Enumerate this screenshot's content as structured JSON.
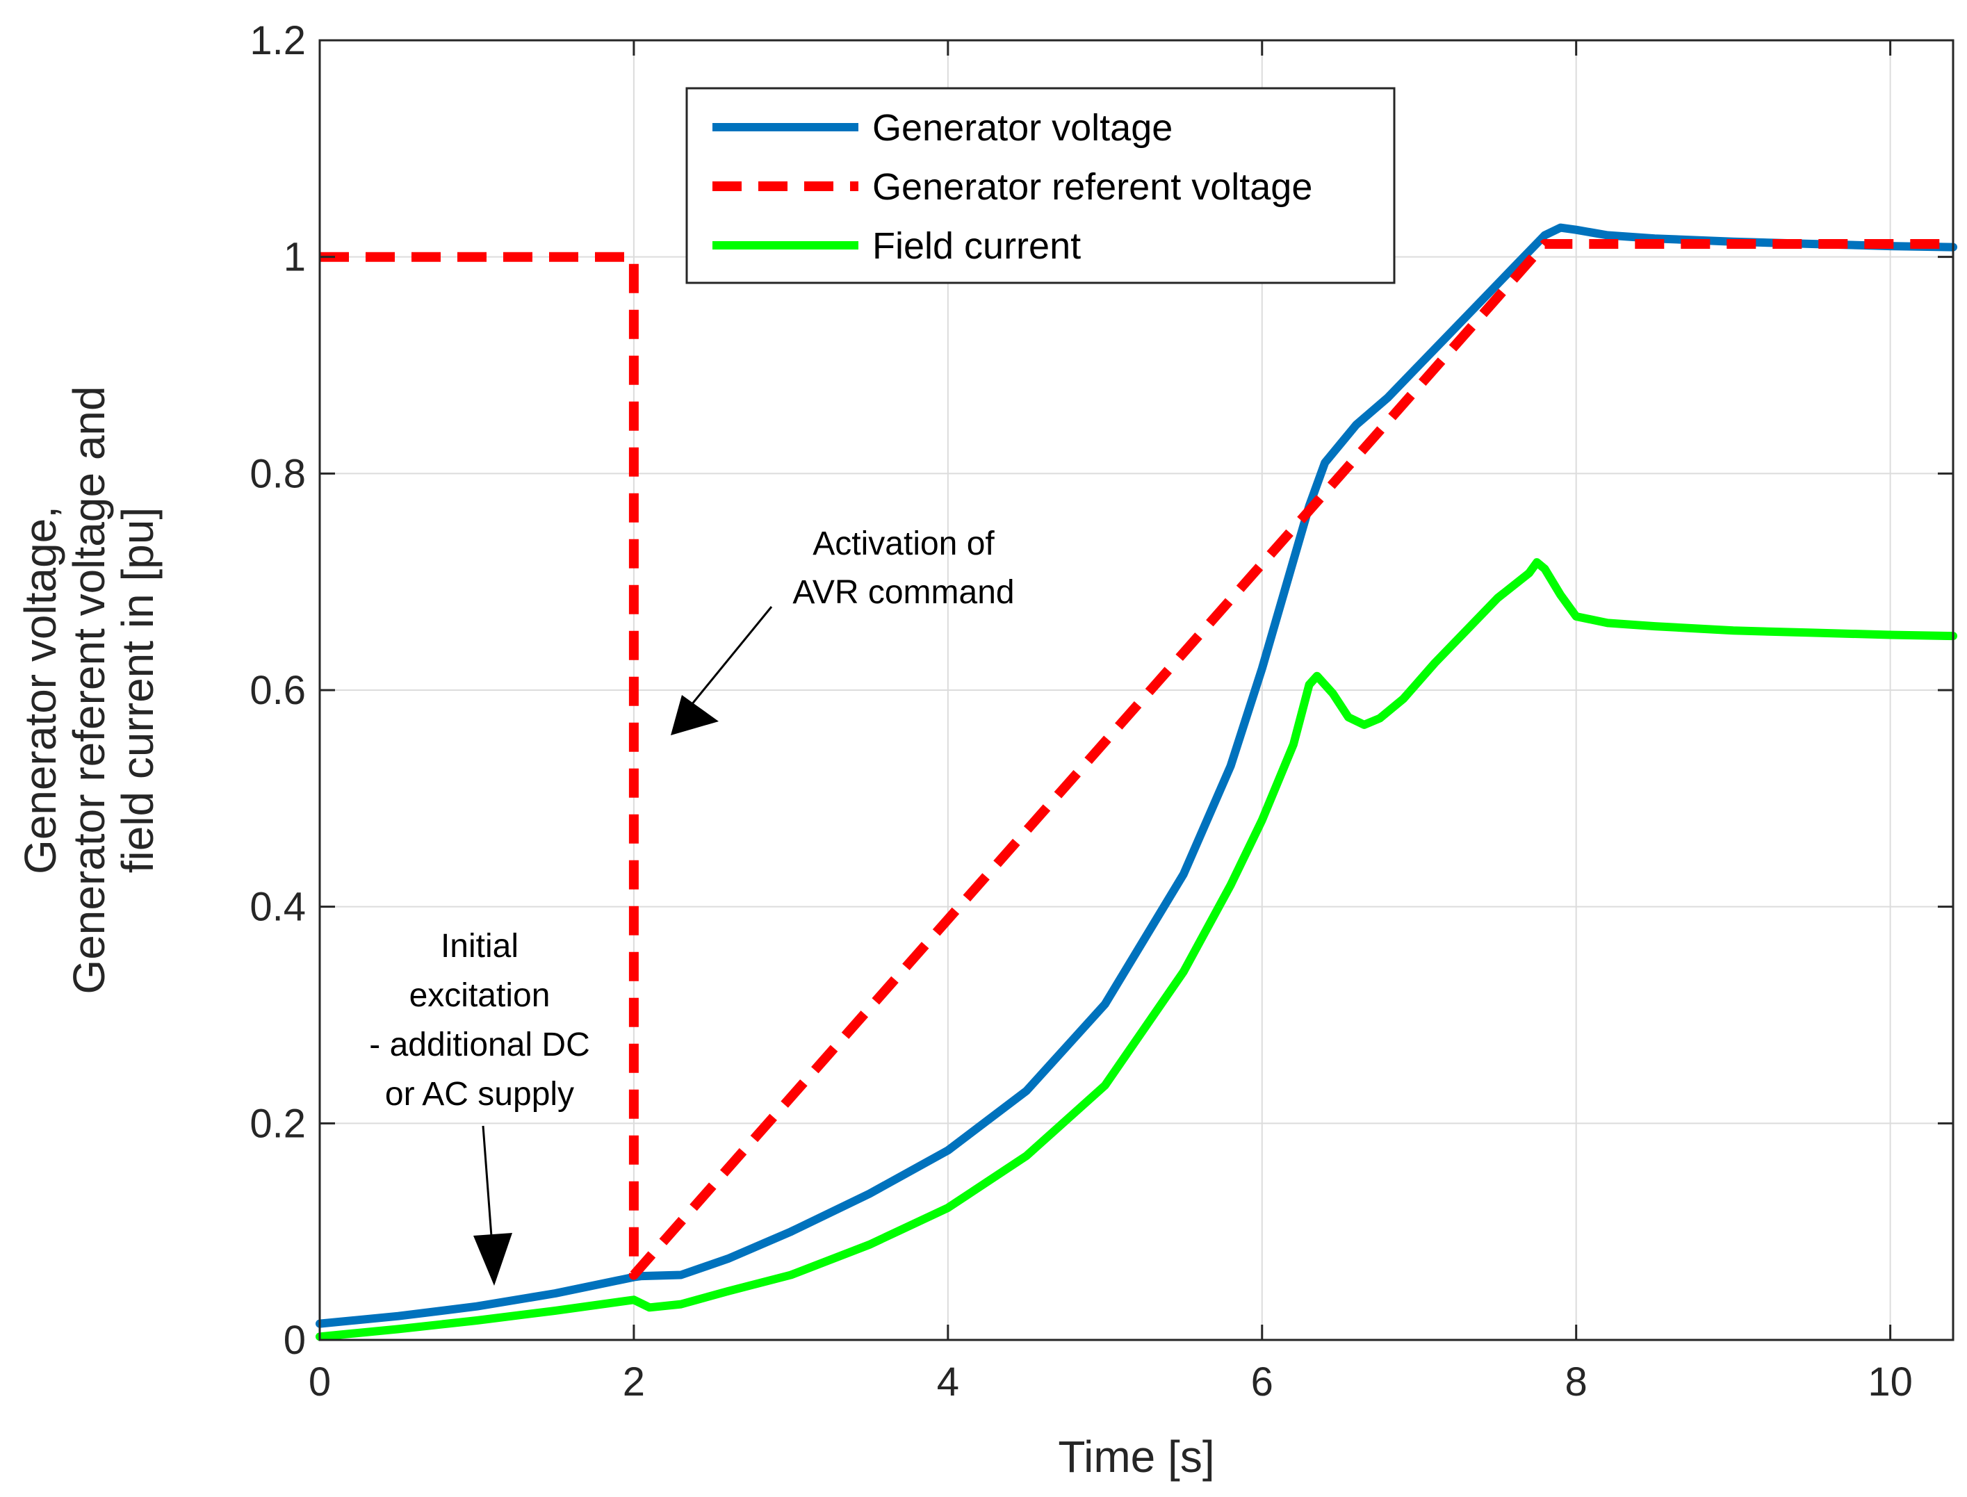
{
  "chart_data": {
    "type": "line",
    "title": "",
    "xlabel": "Time [s]",
    "ylabel_lines": [
      "Generator voltage,",
      "Generator referent voltage and",
      "field current in [pu]"
    ],
    "xlim": [
      0,
      10.4
    ],
    "ylim": [
      0,
      1.2
    ],
    "xticks": [
      0,
      2,
      4,
      6,
      8,
      10
    ],
    "yticks": [
      0,
      0.2,
      0.4,
      0.6,
      0.8,
      1,
      1.2
    ],
    "xtick_labels": [
      "0",
      "2",
      "4",
      "6",
      "8",
      "10"
    ],
    "ytick_labels": [
      "0",
      "0.2",
      "0.4",
      "0.6",
      "0.8",
      "1",
      "1.2"
    ],
    "grid": true,
    "legend_position": "top-center",
    "series": [
      {
        "name": "Generator voltage",
        "color": "#0072bd",
        "style": "solid",
        "x": [
          0,
          0.5,
          1,
          1.5,
          2,
          2.05,
          2.3,
          2.6,
          3,
          3.5,
          4,
          4.5,
          5,
          5.5,
          5.8,
          6,
          6.2,
          6.3,
          6.4,
          6.6,
          6.8,
          7,
          7.2,
          7.4,
          7.6,
          7.8,
          7.9,
          8,
          8.2,
          8.5,
          9,
          9.5,
          10,
          10.4
        ],
        "y": [
          0.015,
          0.022,
          0.031,
          0.043,
          0.058,
          0.059,
          0.06,
          0.075,
          0.1,
          0.135,
          0.175,
          0.23,
          0.31,
          0.43,
          0.53,
          0.62,
          0.72,
          0.77,
          0.81,
          0.845,
          0.87,
          0.9,
          0.93,
          0.96,
          0.99,
          1.02,
          1.027,
          1.025,
          1.02,
          1.017,
          1.014,
          1.012,
          1.01,
          1.009
        ]
      },
      {
        "name": "Generator referent voltage",
        "color": "#ff0000",
        "style": "dashed",
        "x": [
          0,
          2,
          2,
          7.8,
          10.4
        ],
        "y": [
          1.0,
          1.0,
          0.06,
          1.012,
          1.012
        ]
      },
      {
        "name": "Field current",
        "color": "#00ff00",
        "style": "solid",
        "x": [
          0,
          0.5,
          1,
          1.5,
          2,
          2.1,
          2.3,
          2.6,
          3,
          3.5,
          4,
          4.5,
          5,
          5.5,
          5.8,
          6,
          6.2,
          6.3,
          6.35,
          6.45,
          6.55,
          6.65,
          6.75,
          6.9,
          7.1,
          7.3,
          7.5,
          7.7,
          7.75,
          7.8,
          7.9,
          8,
          8.2,
          8.5,
          9,
          9.5,
          10,
          10.4
        ],
        "y": [
          0.003,
          0.01,
          0.018,
          0.027,
          0.037,
          0.03,
          0.033,
          0.045,
          0.06,
          0.088,
          0.122,
          0.17,
          0.235,
          0.34,
          0.42,
          0.48,
          0.55,
          0.605,
          0.613,
          0.597,
          0.575,
          0.568,
          0.574,
          0.592,
          0.625,
          0.655,
          0.685,
          0.708,
          0.718,
          0.712,
          0.688,
          0.668,
          0.662,
          0.659,
          0.655,
          0.653,
          0.651,
          0.65
        ]
      }
    ],
    "annotations": [
      {
        "text_lines": [
          "Activation of",
          "AVR command"
        ]
      },
      {
        "text_lines": [
          "Initial",
          "excitation",
          "- additional DC",
          "or AC supply"
        ]
      }
    ]
  }
}
